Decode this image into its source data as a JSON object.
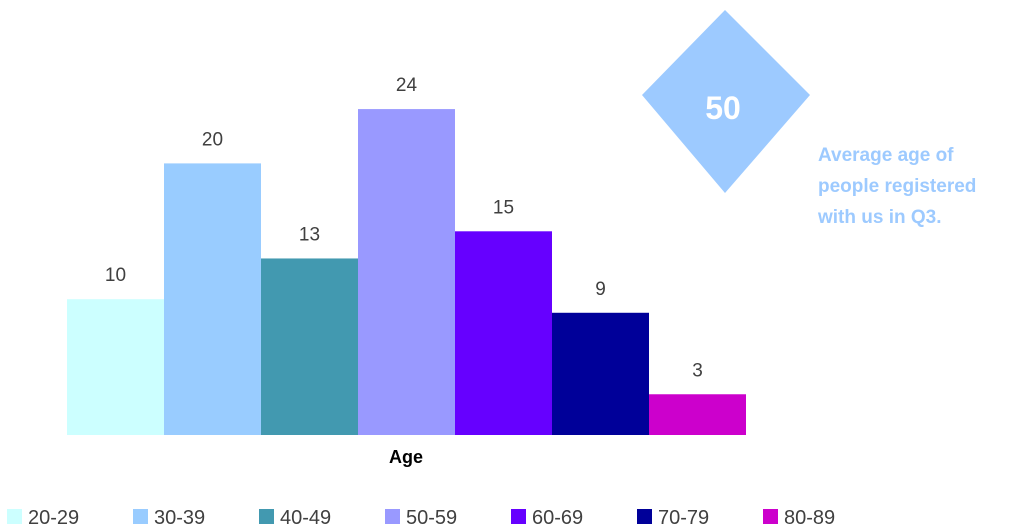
{
  "chart_data": {
    "type": "bar",
    "xlabel": "Age",
    "ylabel": "",
    "ylim": [
      0,
      24
    ],
    "grid": false,
    "legend_position": "bottom",
    "categories": [
      "20-29",
      "30-39",
      "40-49",
      "50-59",
      "60-69",
      "70-79",
      "80-89"
    ],
    "values": [
      10,
      20,
      13,
      24,
      15,
      9,
      3
    ],
    "colors": [
      "#ccffff",
      "#99ccff",
      "#4299b0",
      "#9999ff",
      "#6600ff",
      "#000099",
      "#cc00cc"
    ],
    "data_labels": [
      "10",
      "20",
      "13",
      "24",
      "15",
      "9",
      "3"
    ]
  },
  "callout": {
    "value": "50",
    "lines": [
      "Average age of",
      "people registered",
      "with us in Q3."
    ],
    "color": "#9dcaff"
  }
}
